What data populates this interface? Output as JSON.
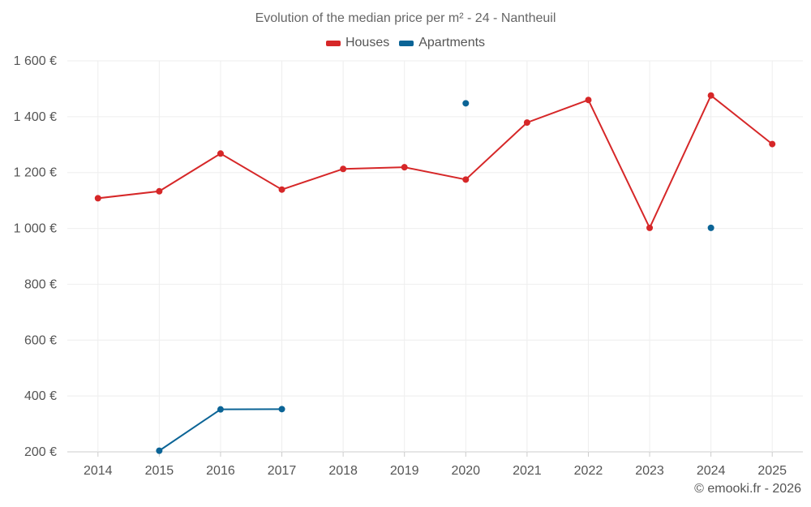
{
  "chart_data": {
    "type": "line",
    "title": "Evolution of the median price per m² - 24 - Nantheuil",
    "categories": [
      "2014",
      "2015",
      "2016",
      "2017",
      "2018",
      "2019",
      "2020",
      "2021",
      "2022",
      "2023",
      "2024",
      "2025"
    ],
    "series": [
      {
        "name": "Houses",
        "color": "#d62728",
        "values": [
          1108,
          1133,
          1268,
          1139,
          1213,
          1219,
          1175,
          1379,
          1460,
          1002,
          1476,
          1302
        ]
      },
      {
        "name": "Apartments",
        "color": "#0b6496",
        "values": [
          null,
          204,
          352,
          353,
          null,
          null,
          1448,
          null,
          null,
          null,
          1002,
          null
        ]
      }
    ],
    "ylim": [
      200,
      1600
    ],
    "yticks": [
      200,
      400,
      600,
      800,
      1000,
      1200,
      1400,
      1600
    ],
    "ytick_labels": [
      "200 €",
      "400 €",
      "600 €",
      "800 €",
      "1 000 €",
      "1 200 €",
      "1 400 €",
      "1 600 €"
    ],
    "xlabel": "",
    "ylabel": "",
    "grid": true,
    "legend_position": "top-center"
  },
  "legend": {
    "houses": "Houses",
    "apartments": "Apartments"
  },
  "footer": "© emooki.fr - 2026"
}
